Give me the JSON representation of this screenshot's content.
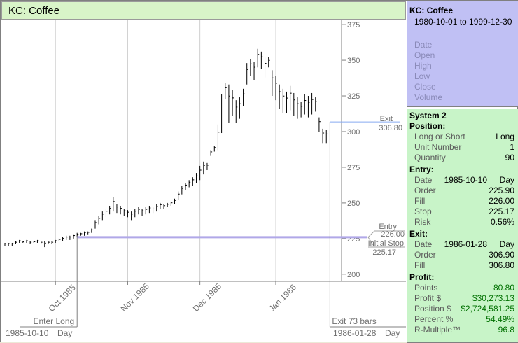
{
  "title": "KC: Coffee",
  "info": {
    "symbol": "KC: Coffee",
    "range": "1980-10-01 to 1999-12-30",
    "fields": [
      "Date",
      "Open",
      "High",
      "Low",
      "Close",
      "Volume"
    ]
  },
  "system": {
    "name": "System 2",
    "position": {
      "header": "Position:",
      "rows": [
        {
          "label": "Long or Short",
          "value": "Long"
        },
        {
          "label": "Unit Number",
          "value": "1"
        },
        {
          "label": "Quantity",
          "value": "90"
        }
      ]
    },
    "entry": {
      "header": "Entry:",
      "date_label": "Date",
      "date": "1985-10-10",
      "bar": "Day",
      "rows": [
        {
          "label": "Order",
          "value": "225.90"
        },
        {
          "label": "Fill",
          "value": "226.00"
        },
        {
          "label": "Stop",
          "value": "225.17"
        },
        {
          "label": "Risk",
          "value": "0.56%"
        }
      ]
    },
    "exit": {
      "header": "Exit:",
      "date_label": "Date",
      "date": "1986-01-28",
      "bar": "Day",
      "rows": [
        {
          "label": "Order",
          "value": "306.90"
        },
        {
          "label": "Fill",
          "value": "306.80"
        }
      ]
    },
    "profit": {
      "header": "Profit:",
      "rows": [
        {
          "label": "Points",
          "value": "80.80"
        },
        {
          "label": "Profit $",
          "value": "$30,273.13"
        },
        {
          "label": "Position $",
          "value": "$2,724,581.25"
        },
        {
          "label": "Percent %",
          "value": "54.49%"
        },
        {
          "label": "R-Multiple™",
          "value": "96.8"
        }
      ]
    }
  },
  "chart": {
    "x_labels": [
      "Oct 1985",
      "Nov 1985",
      "Dec 1985",
      "Jan 1986"
    ],
    "enter_label": "Enter Long",
    "exit_bars_label": "Exit 73 bars",
    "start_date": "1985-10-10",
    "start_bar": "Day",
    "end_date": "1986-01-28",
    "end_bar": "Day",
    "annotations": {
      "exit": "Exit",
      "exit_price": "306.80",
      "entry": "Entry",
      "entry_price": "226.00",
      "stop": "Initial Stop",
      "stop_price": "225.17"
    },
    "colors": {
      "entry_line": "#b0a8e8",
      "exit_line": "#88aaf0",
      "title_bg": "#d8f4c8",
      "info_bg": "#c0c0f4",
      "system_bg": "#c8f4c8"
    }
  },
  "chart_data": {
    "type": "ohlc",
    "title": "KC: Coffee",
    "ylim": [
      195,
      378
    ],
    "yticks": [
      200,
      225,
      250,
      275,
      300,
      325,
      350,
      375
    ],
    "entry_price": 226.0,
    "exit_price": 306.8,
    "stop_price": 225.17,
    "bars": [
      {
        "h": 222,
        "l": 220
      },
      {
        "h": 222,
        "l": 220
      },
      {
        "h": 222,
        "l": 220
      },
      {
        "h": 223,
        "l": 221
      },
      {
        "h": 224,
        "l": 222
      },
      {
        "h": 223,
        "l": 222
      },
      {
        "h": 224,
        "l": 222
      },
      {
        "h": 223,
        "l": 221
      },
      {
        "h": 223,
        "l": 222
      },
      {
        "h": 224,
        "l": 222
      },
      {
        "h": 223,
        "l": 221
      },
      {
        "h": 223,
        "l": 219
      },
      {
        "h": 223,
        "l": 221
      },
      {
        "h": 223,
        "l": 221
      },
      {
        "h": 224,
        "l": 222
      },
      {
        "h": 225,
        "l": 223
      },
      {
        "h": 226,
        "l": 223
      },
      {
        "h": 227,
        "l": 224
      },
      {
        "h": 227,
        "l": 224
      },
      {
        "h": 228,
        "l": 225
      },
      {
        "h": 229,
        "l": 226
      },
      {
        "h": 229,
        "l": 227
      },
      {
        "h": 230,
        "l": 227
      },
      {
        "h": 230,
        "l": 228
      },
      {
        "h": 232,
        "l": 229
      },
      {
        "h": 238,
        "l": 232
      },
      {
        "h": 241,
        "l": 235
      },
      {
        "h": 244,
        "l": 238
      },
      {
        "h": 246,
        "l": 240
      },
      {
        "h": 248,
        "l": 242
      },
      {
        "h": 254,
        "l": 244
      },
      {
        "h": 249,
        "l": 243
      },
      {
        "h": 248,
        "l": 242
      },
      {
        "h": 246,
        "l": 241
      },
      {
        "h": 245,
        "l": 240
      },
      {
        "h": 244,
        "l": 238
      },
      {
        "h": 246,
        "l": 240
      },
      {
        "h": 247,
        "l": 242
      },
      {
        "h": 246,
        "l": 241
      },
      {
        "h": 247,
        "l": 242
      },
      {
        "h": 248,
        "l": 243
      },
      {
        "h": 247,
        "l": 243
      },
      {
        "h": 249,
        "l": 244
      },
      {
        "h": 250,
        "l": 246
      },
      {
        "h": 249,
        "l": 246
      },
      {
        "h": 250,
        "l": 247
      },
      {
        "h": 251,
        "l": 248
      },
      {
        "h": 253,
        "l": 249
      },
      {
        "h": 258,
        "l": 252
      },
      {
        "h": 262,
        "l": 256
      },
      {
        "h": 264,
        "l": 259
      },
      {
        "h": 266,
        "l": 261
      },
      {
        "h": 268,
        "l": 262
      },
      {
        "h": 271,
        "l": 264
      },
      {
        "h": 276,
        "l": 266
      },
      {
        "h": 279,
        "l": 270
      },
      {
        "h": 278,
        "l": 273
      },
      {
        "h": 287,
        "l": 283
      },
      {
        "h": 290,
        "l": 286
      },
      {
        "h": 305,
        "l": 287
      },
      {
        "h": 326,
        "l": 299
      },
      {
        "h": 334,
        "l": 323
      },
      {
        "h": 333,
        "l": 306
      },
      {
        "h": 329,
        "l": 311
      },
      {
        "h": 322,
        "l": 306
      },
      {
        "h": 324,
        "l": 309
      },
      {
        "h": 330,
        "l": 318
      },
      {
        "h": 348,
        "l": 333
      },
      {
        "h": 351,
        "l": 339
      },
      {
        "h": 349,
        "l": 336
      },
      {
        "h": 358,
        "l": 345
      },
      {
        "h": 356,
        "l": 344
      },
      {
        "h": 352,
        "l": 338
      },
      {
        "h": 352,
        "l": 345
      },
      {
        "h": 343,
        "l": 325
      },
      {
        "h": 339,
        "l": 322
      },
      {
        "h": 333,
        "l": 316
      },
      {
        "h": 330,
        "l": 313
      },
      {
        "h": 328,
        "l": 313
      },
      {
        "h": 332,
        "l": 315
      },
      {
        "h": 327,
        "l": 311
      },
      {
        "h": 324,
        "l": 309
      },
      {
        "h": 321,
        "l": 310
      },
      {
        "h": 326,
        "l": 312
      },
      {
        "h": 325,
        "l": 310
      },
      {
        "h": 327,
        "l": 312
      },
      {
        "h": 324,
        "l": 314
      },
      {
        "h": 310,
        "l": 300
      },
      {
        "h": 302,
        "l": 292
      },
      {
        "h": 301,
        "l": 292
      }
    ]
  }
}
